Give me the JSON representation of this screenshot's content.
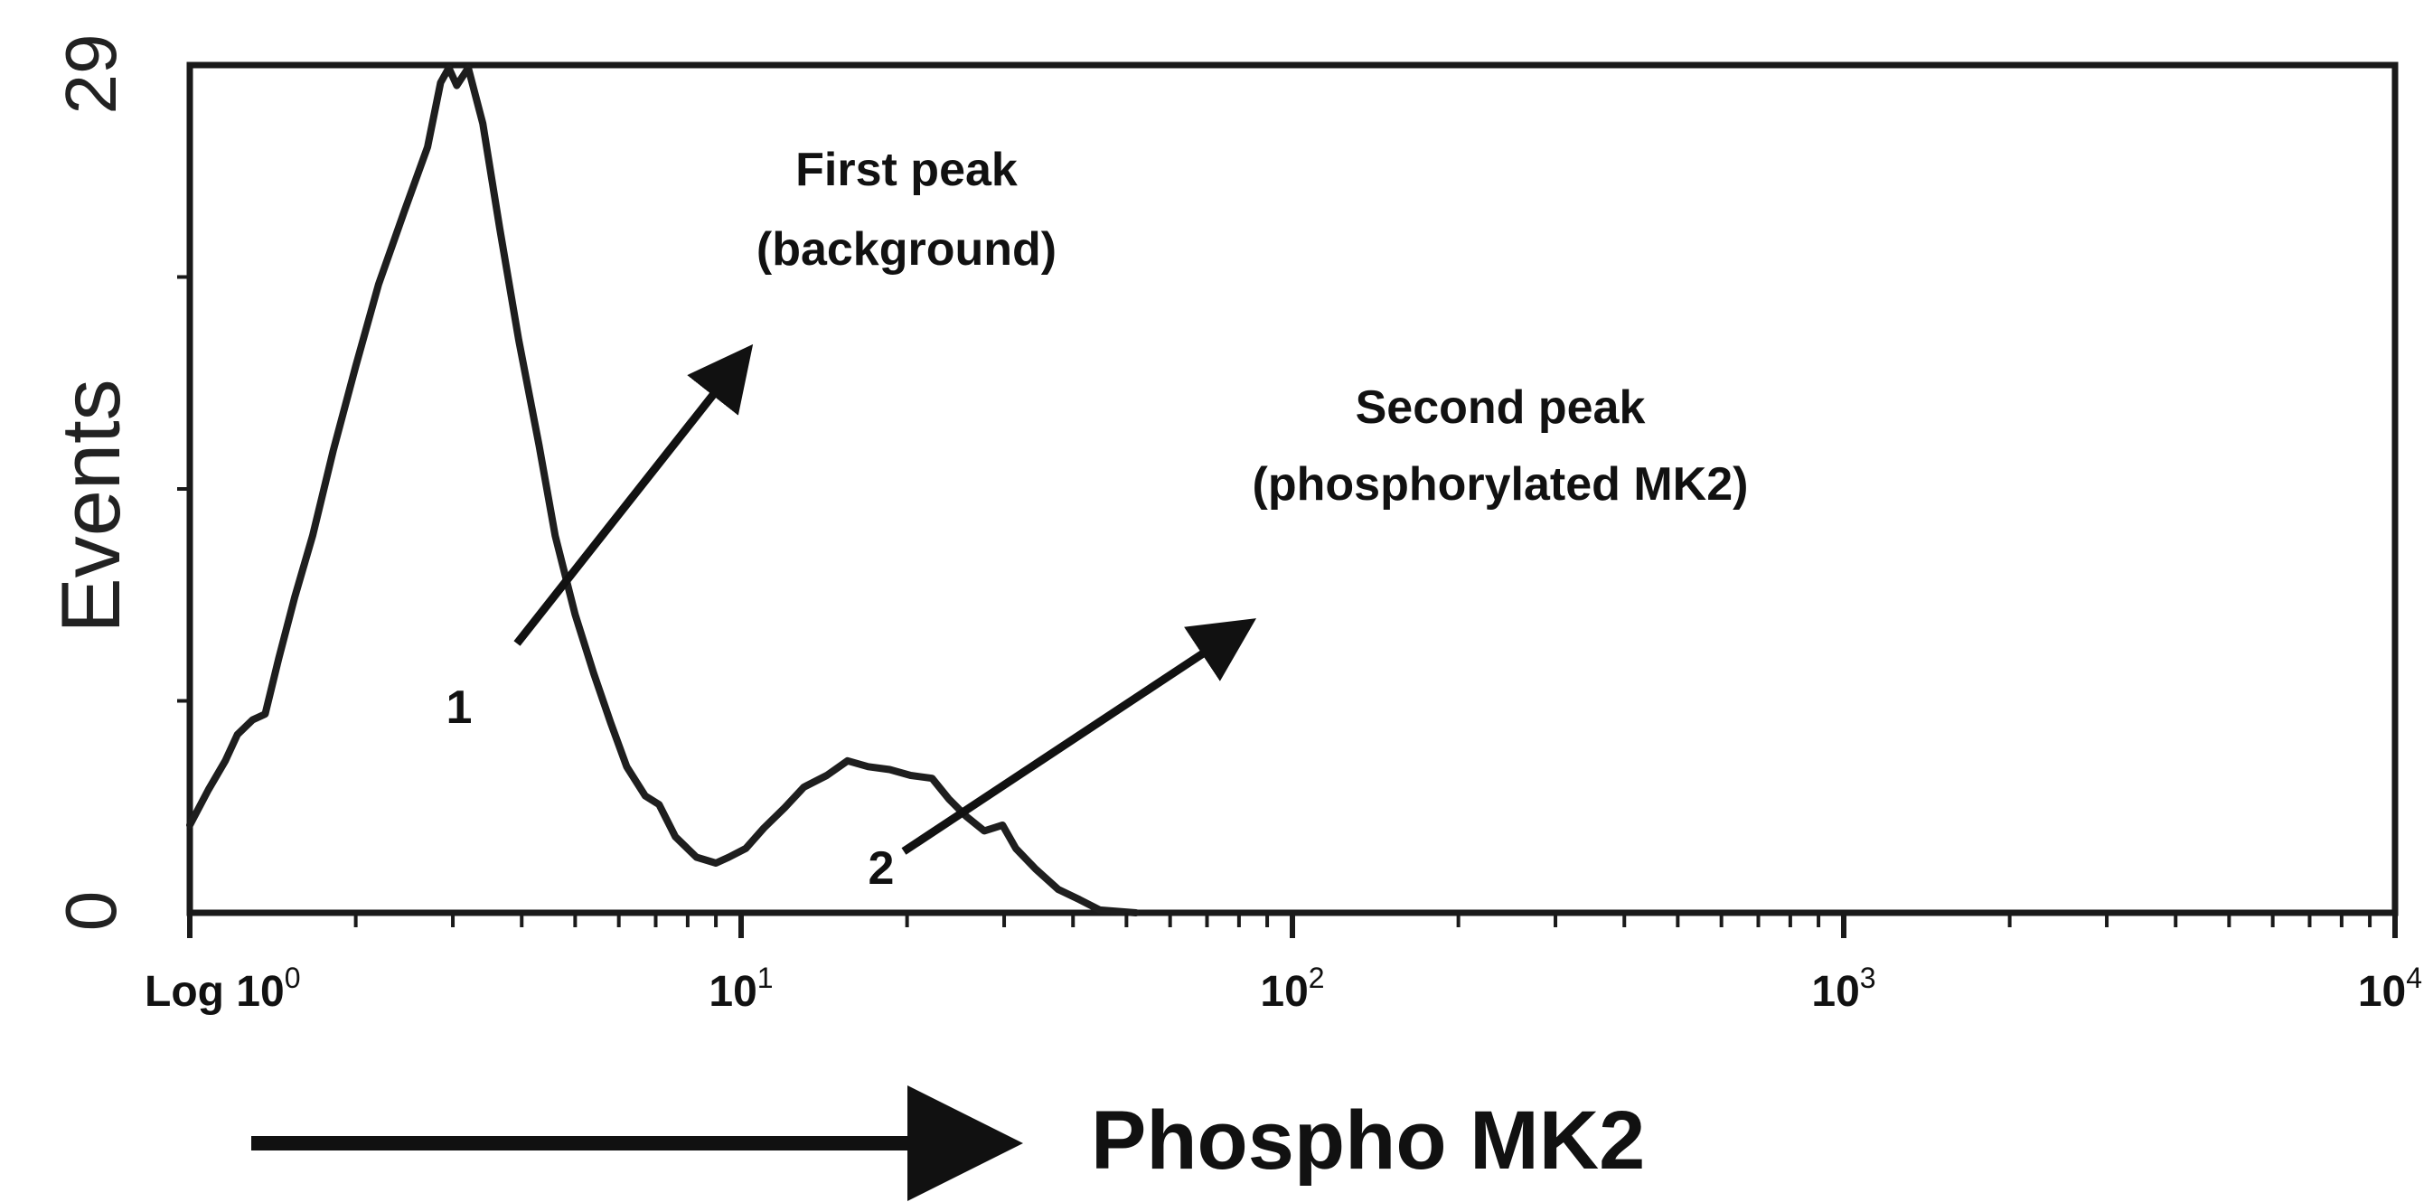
{
  "chart_data": {
    "type": "area",
    "title": "",
    "xlabel": "Phospho MK2",
    "ylabel": "Events",
    "x_scale": "log",
    "xlim": [
      1,
      10000
    ],
    "ylim": [
      0,
      29
    ],
    "y_ticks": [
      "0",
      "29"
    ],
    "x_ticks": [
      {
        "value": 1,
        "prefix": "Log 10",
        "exp": "0"
      },
      {
        "value": 10,
        "prefix": "10",
        "exp": "1"
      },
      {
        "value": 100,
        "prefix": "10",
        "exp": "2"
      },
      {
        "value": 1000,
        "prefix": "10",
        "exp": "3"
      },
      {
        "value": 10000,
        "prefix": "10",
        "exp": "4"
      }
    ],
    "series": [
      {
        "name": "Phospho MK2 histogram",
        "points": [
          [
            1.0,
            3.0
          ],
          [
            1.08,
            4.2
          ],
          [
            1.16,
            5.2
          ],
          [
            1.22,
            6.1
          ],
          [
            1.3,
            6.6
          ],
          [
            1.37,
            6.8
          ],
          [
            1.45,
            8.7
          ],
          [
            1.55,
            10.8
          ],
          [
            1.67,
            12.9
          ],
          [
            1.82,
            15.8
          ],
          [
            2.0,
            18.7
          ],
          [
            2.2,
            21.5
          ],
          [
            2.45,
            24.0
          ],
          [
            2.7,
            26.2
          ],
          [
            2.85,
            28.4
          ],
          [
            2.95,
            28.9
          ],
          [
            3.05,
            28.3
          ],
          [
            3.2,
            28.9
          ],
          [
            3.4,
            27.0
          ],
          [
            3.65,
            23.4
          ],
          [
            3.95,
            19.6
          ],
          [
            4.3,
            16.0
          ],
          [
            4.6,
            12.9
          ],
          [
            5.0,
            10.2
          ],
          [
            5.4,
            8.2
          ],
          [
            5.8,
            6.5
          ],
          [
            6.2,
            5.0
          ],
          [
            6.7,
            4.0
          ],
          [
            7.1,
            3.7
          ],
          [
            7.6,
            2.6
          ],
          [
            8.3,
            1.9
          ],
          [
            9.0,
            1.7
          ],
          [
            9.5,
            1.9
          ],
          [
            10.2,
            2.2
          ],
          [
            11.0,
            2.9
          ],
          [
            12.0,
            3.6
          ],
          [
            13.0,
            4.3
          ],
          [
            14.3,
            4.7
          ],
          [
            15.6,
            5.2
          ],
          [
            17.0,
            5.0
          ],
          [
            18.6,
            4.9
          ],
          [
            20.3,
            4.7
          ],
          [
            22.2,
            4.6
          ],
          [
            23.8,
            3.9
          ],
          [
            25.6,
            3.3
          ],
          [
            27.6,
            2.8
          ],
          [
            29.8,
            3.0
          ],
          [
            31.5,
            2.2
          ],
          [
            34.2,
            1.5
          ],
          [
            37.6,
            0.8
          ],
          [
            41.1,
            0.45
          ],
          [
            44.7,
            0.1
          ],
          [
            52.0,
            0.0
          ]
        ]
      }
    ],
    "annotations": [
      {
        "marker": "1",
        "label_line1": "First peak",
        "label_line2": "(background)"
      },
      {
        "marker": "2",
        "label_line1": "Second peak",
        "label_line2": "(phosphorylated MK2)"
      }
    ]
  }
}
